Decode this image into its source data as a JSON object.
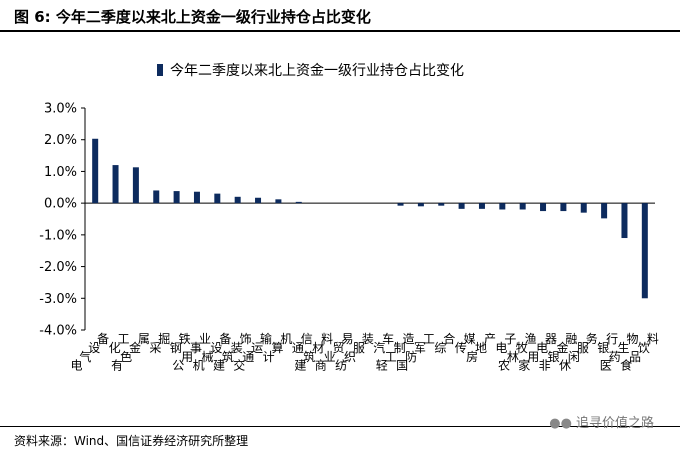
{
  "figure": {
    "title": "图  6:  今年二季度以来北上资金一级行业持仓占比变化",
    "source": "资料来源：Wind、国信证券经济研究所整理",
    "watermark": "追寻价值之路"
  },
  "colors": {
    "bar": "#0d2b5e",
    "rule": "#000000"
  },
  "chart_data": {
    "type": "bar",
    "title": "",
    "xlabel": "",
    "ylabel": "",
    "legend": "今年二季度以来北上资金一级行业持仓占比变化",
    "legend_position": "top",
    "ylim": [
      -4.0,
      3.0
    ],
    "yticks": [
      "3.0%",
      "2.0%",
      "1.0%",
      "0.0%",
      "-1.0%",
      "-2.0%",
      "-3.0%",
      "-4.0%"
    ],
    "grid": false,
    "categories": [
      "电气设备",
      "化工",
      "有色金属",
      "采掘",
      "钢铁",
      "公用事业",
      "机械设备",
      "建筑装饰",
      "交通运输",
      "计算机",
      "通信",
      "建筑材料",
      "商业贸易",
      "纺织服装",
      "汽车",
      "轻工制造",
      "国防军工",
      "综合",
      "传媒",
      "房地产",
      "电子",
      "农林牧渔",
      "家用电器",
      "非银金融",
      "休闲服务",
      "银行",
      "医药生物",
      "食品饮料"
    ],
    "values": [
      2.03,
      1.2,
      1.13,
      0.4,
      0.38,
      0.36,
      0.3,
      0.2,
      0.17,
      0.12,
      0.04,
      0.0,
      0.0,
      0.0,
      0.0,
      -0.08,
      -0.1,
      -0.08,
      -0.18,
      -0.18,
      -0.2,
      -0.2,
      -0.25,
      -0.25,
      -0.3,
      -0.48,
      -1.1,
      -3.0
    ]
  }
}
